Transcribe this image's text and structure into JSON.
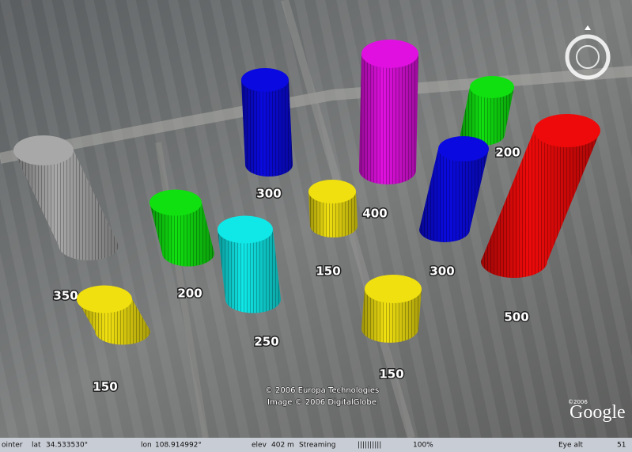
{
  "markers": [
    {
      "label": 350,
      "color": "#a8a8a8"
    },
    {
      "label": 300,
      "color": "#0a0ae0"
    },
    {
      "label": 400,
      "color": "#e010e0"
    },
    {
      "label": 200,
      "color": "#10e010"
    },
    {
      "label": 300,
      "color": "#0a0ae0"
    },
    {
      "label": 500,
      "color": "#ee0a0a"
    },
    {
      "label": 200,
      "color": "#10e010"
    },
    {
      "label": 150,
      "color": "#f0e010"
    },
    {
      "label": 250,
      "color": "#10e8e8"
    },
    {
      "label": 150,
      "color": "#f0e010"
    },
    {
      "label": 150,
      "color": "#f0e010"
    }
  ],
  "attribution": {
    "line1": "© 2006 Europa Technologies",
    "line2": "Image © 2006 DigitalGlobe",
    "logo_copyright": "©2006",
    "logo": "Google"
  },
  "status_bar": {
    "pointer": "ointer",
    "lat_label": "lat",
    "lat": "34.533530°",
    "lon_label": "lon",
    "lon": "108.914992°",
    "elev_label": "elev",
    "elev": "402 m",
    "streaming": "Streaming",
    "bars": "||||||||||",
    "percent": "100%",
    "eye_alt_label": "Eye alt",
    "eye_alt": "51"
  }
}
